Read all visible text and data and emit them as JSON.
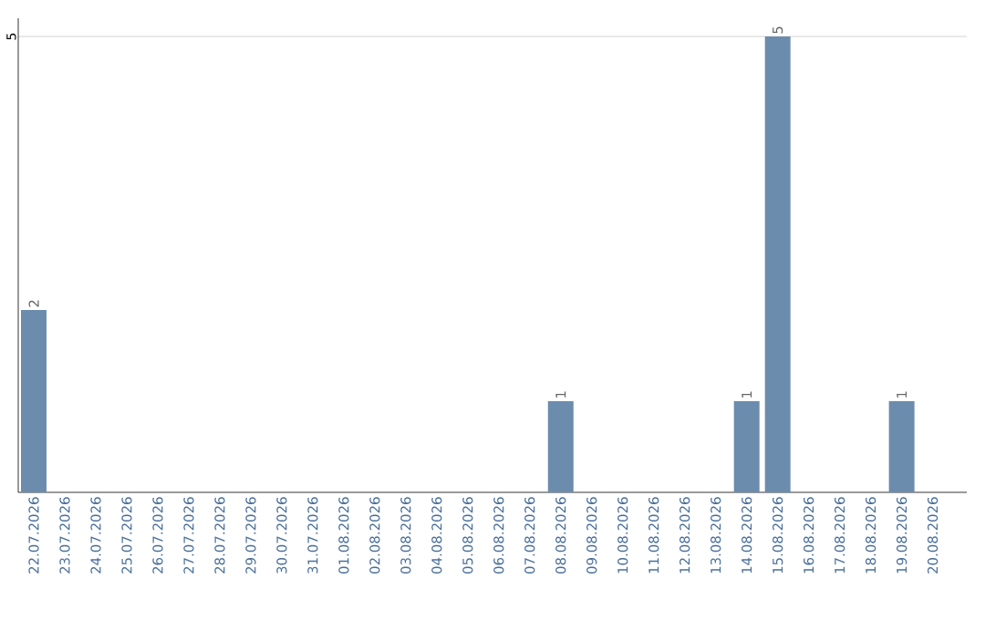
{
  "chart_data": {
    "type": "bar",
    "categories": [
      "22.07.2026",
      "23.07.2026",
      "24.07.2026",
      "25.07.2026",
      "26.07.2026",
      "27.07.2026",
      "28.07.2026",
      "29.07.2026",
      "30.07.2026",
      "31.07.2026",
      "01.08.2026",
      "02.08.2026",
      "03.08.2026",
      "04.08.2026",
      "05.08.2026",
      "06.08.2026",
      "07.08.2026",
      "08.08.2026",
      "09.08.2026",
      "10.08.2026",
      "11.08.2026",
      "12.08.2026",
      "13.08.2026",
      "14.08.2026",
      "15.08.2026",
      "16.08.2026",
      "17.08.2026",
      "18.08.2026",
      "19.08.2026",
      "20.08.2026"
    ],
    "values": [
      2,
      0,
      0,
      0,
      0,
      0,
      0,
      0,
      0,
      0,
      0,
      0,
      0,
      0,
      0,
      0,
      0,
      1,
      0,
      0,
      0,
      0,
      0,
      1,
      5,
      0,
      0,
      0,
      1,
      0
    ],
    "value_labels": [
      "2",
      null,
      null,
      null,
      null,
      null,
      null,
      null,
      null,
      null,
      null,
      null,
      null,
      null,
      null,
      null,
      null,
      "1",
      null,
      null,
      null,
      null,
      null,
      "1",
      "5",
      null,
      null,
      null,
      "1",
      null
    ],
    "color": "#6b8cad",
    "ylim": [
      0,
      5.2
    ],
    "yticks": [
      5
    ],
    "grid": "y"
  }
}
